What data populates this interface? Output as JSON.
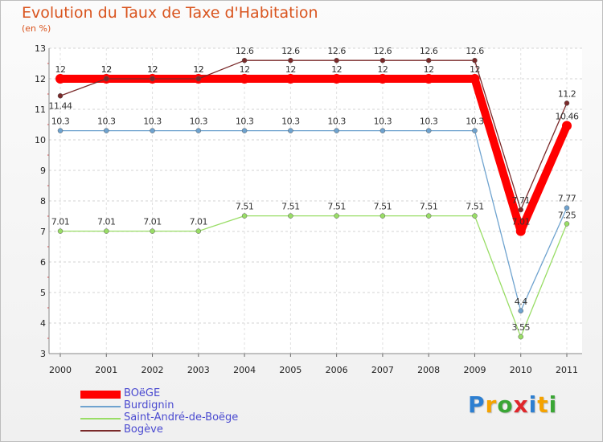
{
  "header": {
    "title": "Evolution du Taux de Taxe d'Habitation",
    "subtitle": "(en %)"
  },
  "chart_data": {
    "type": "line",
    "title": "Evolution du Taux de Taxe d'Habitation",
    "ylabel": "(en %)",
    "xlabel": "",
    "categories": [
      "2000",
      "2001",
      "2002",
      "2003",
      "2004",
      "2005",
      "2006",
      "2007",
      "2008",
      "2009",
      "2010",
      "2011"
    ],
    "yticks": [
      "3",
      "4",
      "5",
      "6",
      "7",
      "8",
      "9",
      "10",
      "11",
      "12",
      "13"
    ],
    "ylim": [
      3,
      13
    ],
    "grid": "horizontal dashed",
    "legend_position": "bottom-left",
    "series": [
      {
        "name": "BOëGE",
        "color": "#ff0000",
        "values": [
          12,
          12,
          12,
          12,
          12,
          12,
          12,
          12,
          12,
          12,
          7.01,
          10.46
        ],
        "labels": [
          "12",
          "12",
          "12",
          "12",
          "12",
          "12",
          "12",
          "12",
          "12",
          "12",
          "7.01",
          "10.46"
        ]
      },
      {
        "name": "Burdignin",
        "color": "#6fa3cf",
        "values": [
          10.3,
          10.3,
          10.3,
          10.3,
          10.3,
          10.3,
          10.3,
          10.3,
          10.3,
          10.3,
          4.4,
          7.77
        ],
        "labels": [
          "10.3",
          "10.3",
          "10.3",
          "10.3",
          "10.3",
          "10.3",
          "10.3",
          "10.3",
          "10.3",
          "10.3",
          "4.4",
          "7.77"
        ]
      },
      {
        "name": "Saint-André-de-Boëge",
        "color": "#99dd66",
        "values": [
          7.01,
          7.01,
          7.01,
          7.01,
          7.51,
          7.51,
          7.51,
          7.51,
          7.51,
          7.51,
          3.55,
          7.25
        ],
        "labels": [
          "7.01",
          "7.01",
          "7.01",
          "7.01",
          "7.51",
          "7.51",
          "7.51",
          "7.51",
          "7.51",
          "7.51",
          "3.55",
          "7.25"
        ]
      },
      {
        "name": "Bogève",
        "color": "#7a2a2a",
        "values": [
          11.44,
          12,
          12,
          12,
          12.6,
          12.6,
          12.6,
          12.6,
          12.6,
          12.6,
          7.71,
          11.2
        ],
        "labels": [
          "11.44",
          "12",
          "12",
          "12",
          "12.6",
          "12.6",
          "12.6",
          "12.6",
          "12.6",
          "12.6",
          "7.71",
          "11.2"
        ]
      }
    ]
  },
  "logo": {
    "letters": [
      "P",
      "r",
      "o",
      "x",
      "i",
      "t",
      "i"
    ],
    "colors": [
      "#2d7fd1",
      "#f5a300",
      "#3aa635",
      "#e0262b",
      "#2d7fd1",
      "#f5a300",
      "#3aa635"
    ]
  }
}
